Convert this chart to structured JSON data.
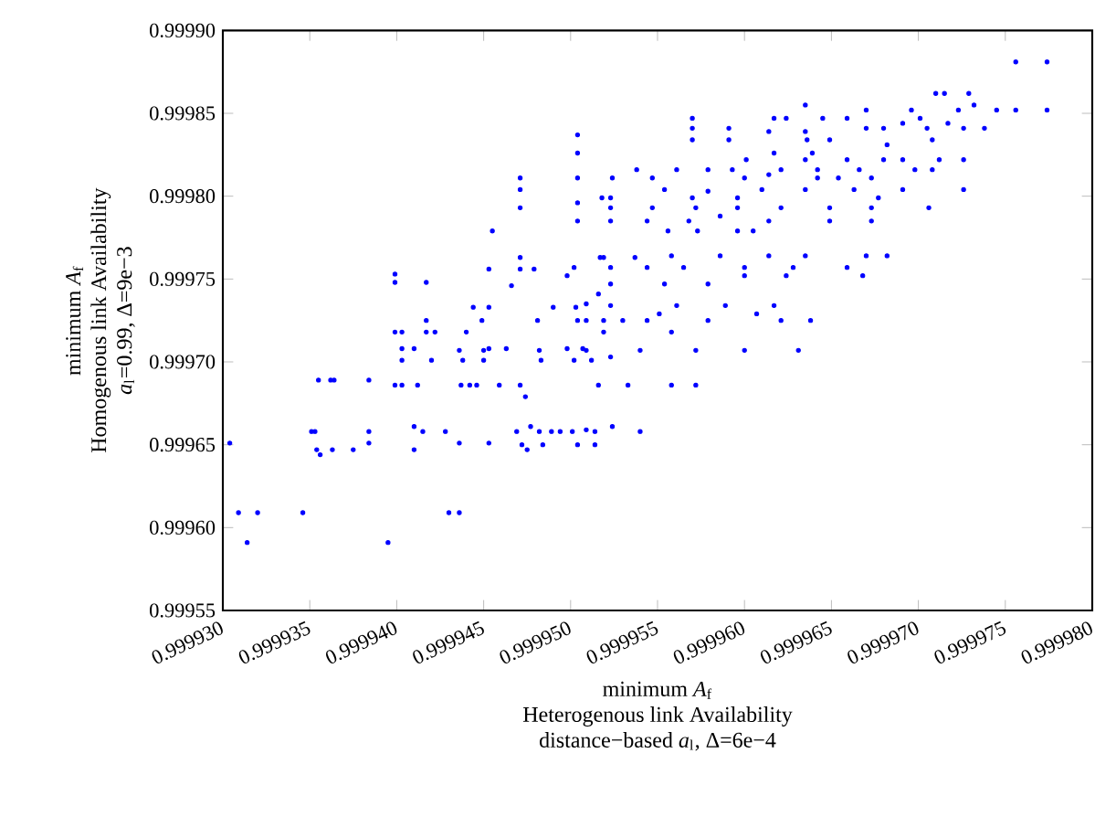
{
  "chart_data": {
    "type": "scatter",
    "xlabel": "minimum *A*$_{f}$",
    "ylabel": "minimum *A*$_{f}$",
    "annotations": [
      "Heterogenous link Availability",
      "distance−based *a*$_{l}$, Δ=6e−4",
      "Homogenous link Availability",
      "*a*$_{l}$=0.99, Δ=9e−3"
    ],
    "xlim": [
      0.99993,
      0.99998
    ],
    "ylim": [
      0.99955,
      0.9999
    ],
    "xticks": [
      {
        "value": 0.99993,
        "label": "0.999930"
      },
      {
        "value": 0.999935,
        "label": "0.999935"
      },
      {
        "value": 0.99994,
        "label": "0.999940"
      },
      {
        "value": 0.999945,
        "label": "0.999945"
      },
      {
        "value": 0.99995,
        "label": "0.999950"
      },
      {
        "value": 0.999955,
        "label": "0.999955"
      },
      {
        "value": 0.99996,
        "label": "0.999960"
      },
      {
        "value": 0.999965,
        "label": "0.999965"
      },
      {
        "value": 0.99997,
        "label": "0.999970"
      },
      {
        "value": 0.999975,
        "label": "0.999975"
      },
      {
        "value": 0.99998,
        "label": "0.999980"
      }
    ],
    "yticks": [
      0.99955,
      {
        "value": 0.9996,
        "label": "0.99960"
      },
      0.99965,
      {
        "value": 0.9997,
        "label": "0.99970"
      },
      0.99975,
      {
        "value": 0.9998,
        "label": "0.99980"
      },
      0.99985,
      {
        "value": 0.9999,
        "label": "0.99990"
      }
    ],
    "marker": "circle",
    "series": [
      {
        "color": "#0000ff",
        "x": [
          0.9999304,
          0.9999309,
          0.9999314,
          0.999932,
          0.9999346,
          0.9999351,
          0.9999353,
          0.9999354,
          0.9999356,
          0.9999355,
          0.9999362,
          0.9999364,
          0.9999363,
          0.9999375,
          0.9999384,
          0.9999384,
          0.9999384,
          0.9999395,
          0.9999399,
          0.9999399,
          0.9999399,
          0.9999399,
          0.9999403,
          0.9999403,
          0.9999403,
          0.9999403,
          0.999941,
          0.999941,
          0.999941,
          0.9999412,
          0.9999415,
          0.9999417,
          0.9999417,
          0.9999417,
          0.999942,
          0.9999422,
          0.9999428,
          0.999943,
          0.9999436,
          0.9999436,
          0.9999436,
          0.9999438,
          0.9999437,
          0.999944,
          0.9999442,
          0.9999444,
          0.9999446,
          0.9999449,
          0.999945,
          0.999945,
          0.9999453,
          0.9999453,
          0.9999453,
          0.9999453,
          0.9999455,
          0.9999459,
          0.9999463,
          0.9999466,
          0.9999469,
          0.9999471,
          0.9999471,
          0.9999471,
          0.9999471,
          0.9999471,
          0.9999471,
          0.9999472,
          0.9999474,
          0.9999477,
          0.9999475,
          0.9999479,
          0.9999481,
          0.9999482,
          0.9999483,
          0.9999482,
          0.9999484,
          0.9999489,
          0.999949,
          0.9999494,
          0.9999498,
          0.9999498,
          0.9999501,
          0.9999502,
          0.9999504,
          0.9999504,
          0.9999504,
          0.9999504,
          0.9999504,
          0.9999504,
          0.9999504,
          0.9999503,
          0.9999502,
          0.9999507,
          0.9999512,
          0.9999509,
          0.9999514,
          0.9999516,
          0.9999517,
          0.9999518,
          0.9999509,
          0.9999519,
          0.999953,
          0.9999509,
          0.9999523,
          0.999954,
          0.9999516,
          0.9999533,
          0.9999558,
          0.9999572,
          0.9999509,
          0.9999524,
          0.999954,
          0.9999514,
          0.9999519,
          0.9999537,
          0.9999558,
          0.9999586,
          0.9999614,
          0.9999635,
          0.999967,
          0.9999682,
          0.9999523,
          0.9999544,
          0.9999565,
          0.99996,
          0.9999628,
          0.9999659,
          0.9999523,
          0.9999554,
          0.9999579,
          0.99996,
          0.9999624,
          0.9999668,
          0.9999523,
          0.9999561,
          0.9999589,
          0.9999617,
          0.9999544,
          0.9999579,
          0.9999621,
          0.9999638,
          0.9999519,
          0.9999558,
          0.9999551,
          0.9999607,
          0.9999572,
          0.99996,
          0.9999631,
          0.9999523,
          0.9999544,
          0.9999568,
          0.9999586,
          0.9999614,
          0.9999649,
          0.9999673,
          0.9999523,
          0.9999547,
          0.9999572,
          0.9999596,
          0.9999621,
          0.9999649,
          0.9999673,
          0.9999706,
          0.9999523,
          0.9999554,
          0.9999579,
          0.999961,
          0.9999635,
          0.9999663,
          0.9999691,
          0.9999726,
          0.999957,
          0.9999596,
          0.9999677,
          0.9999556,
          0.9999573,
          0.9999596,
          0.9999605,
          0.9999524,
          0.9999547,
          0.99996,
          0.9999614,
          0.9999642,
          0.9999654,
          0.9999673,
          0.9999561,
          0.9999579,
          0.9999593,
          0.9999621,
          0.9999642,
          0.9999666,
          0.9999698,
          0.9999708,
          0.9999538,
          0.9999601,
          0.9999635,
          0.9999659,
          0.999968,
          0.9999691,
          0.9999712,
          0.9999726,
          0.9999617,
          0.9999639,
          0.999957,
          0.999957,
          0.999957,
          0.9999591,
          0.9999591,
          0.9999614,
          0.9999617,
          0.9999624,
          0.9999635,
          0.9999635,
          0.9999636,
          0.9999645,
          0.9999649,
          0.9999659,
          0.999967,
          0.999967,
          0.999968,
          0.9999682,
          0.9999691,
          0.9999696,
          0.9999701,
          0.9999705,
          0.9999708,
          0.999971,
          0.9999715,
          0.9999717,
          0.9999723,
          0.9999729,
          0.9999726,
          0.9999732,
          0.9999738,
          0.9999745,
          0.9999756,
          0.9999756,
          0.9999774,
          0.9999774
        ],
        "values": [
          0.999651,
          0.999609,
          0.999591,
          0.999609,
          0.999609,
          0.999658,
          0.999658,
          0.999647,
          0.999644,
          0.999689,
          0.999689,
          0.999689,
          0.999647,
          0.999647,
          0.999689,
          0.999658,
          0.999651,
          0.999591,
          0.999718,
          0.999753,
          0.999748,
          0.999686,
          0.999718,
          0.999686,
          0.999701,
          0.999708,
          0.999708,
          0.999661,
          0.999647,
          0.999686,
          0.999658,
          0.999748,
          0.999725,
          0.999718,
          0.999701,
          0.999718,
          0.999658,
          0.999609,
          0.999609,
          0.999651,
          0.999707,
          0.999701,
          0.999686,
          0.999718,
          0.999686,
          0.999733,
          0.999686,
          0.999725,
          0.999707,
          0.999701,
          0.999708,
          0.999756,
          0.999733,
          0.999651,
          0.999779,
          0.999686,
          0.999708,
          0.999746,
          0.999658,
          0.999811,
          0.999804,
          0.999793,
          0.999763,
          0.999756,
          0.999686,
          0.99965,
          0.999679,
          0.999661,
          0.999647,
          0.999756,
          0.999725,
          0.999707,
          0.999701,
          0.999658,
          0.99965,
          0.999658,
          0.999733,
          0.999658,
          0.999752,
          0.999708,
          0.999658,
          0.999757,
          0.999837,
          0.999826,
          0.999811,
          0.999796,
          0.999785,
          0.999725,
          0.99965,
          0.999733,
          0.999701,
          0.999708,
          0.999701,
          0.999725,
          0.999658,
          0.999741,
          0.999763,
          0.999799,
          0.999735,
          0.999725,
          0.999725,
          0.999707,
          0.999703,
          0.999707,
          0.999686,
          0.999686,
          0.999686,
          0.999686,
          0.999659,
          0.999661,
          0.999658,
          0.99965,
          0.999763,
          0.999763,
          0.999764,
          0.999764,
          0.999764,
          0.999764,
          0.999764,
          0.999764,
          0.999757,
          0.999757,
          0.999757,
          0.999757,
          0.999757,
          0.999757,
          0.999747,
          0.999747,
          0.999747,
          0.999752,
          0.999752,
          0.999752,
          0.999734,
          0.999734,
          0.999734,
          0.999734,
          0.999725,
          0.999725,
          0.999725,
          0.999725,
          0.999718,
          0.999718,
          0.999729,
          0.999729,
          0.999707,
          0.999707,
          0.999707,
          0.999785,
          0.999785,
          0.999785,
          0.999788,
          0.999785,
          0.999785,
          0.999785,
          0.999793,
          0.999793,
          0.999793,
          0.999793,
          0.999793,
          0.999793,
          0.999793,
          0.999793,
          0.999799,
          0.999804,
          0.999803,
          0.999804,
          0.999804,
          0.999804,
          0.999804,
          0.999804,
          0.999799,
          0.999799,
          0.999799,
          0.999779,
          0.999779,
          0.999779,
          0.999779,
          0.999811,
          0.999811,
          0.999811,
          0.999813,
          0.999811,
          0.999811,
          0.999811,
          0.999816,
          0.999816,
          0.999816,
          0.999816,
          0.999816,
          0.999816,
          0.999816,
          0.999816,
          0.999816,
          0.999822,
          0.999822,
          0.999822,
          0.999822,
          0.999822,
          0.999822,
          0.999822,
          0.999826,
          0.999826,
          0.999847,
          0.999841,
          0.999834,
          0.999841,
          0.999834,
          0.999839,
          0.999847,
          0.999847,
          0.999855,
          0.999839,
          0.999834,
          0.999847,
          0.999834,
          0.999847,
          0.999841,
          0.999852,
          0.999841,
          0.999831,
          0.999844,
          0.999852,
          0.999847,
          0.999841,
          0.999834,
          0.999862,
          0.999862,
          0.999844,
          0.999852,
          0.999862,
          0.999841,
          0.999855,
          0.999841,
          0.999852,
          0.999881,
          0.999852,
          0.999881,
          0.999852
        ]
      }
    ]
  }
}
